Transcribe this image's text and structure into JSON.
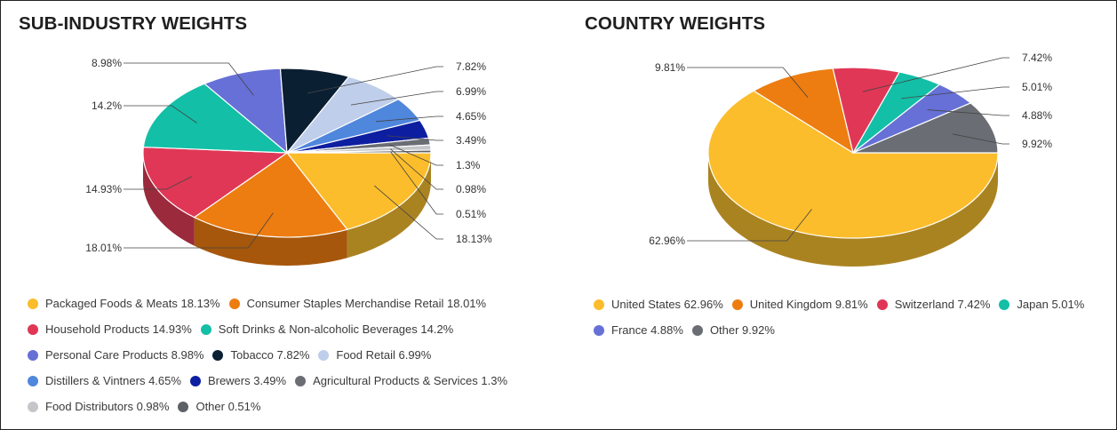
{
  "charts": [
    {
      "title": "SUB-INDUSTRY WEIGHTS",
      "chart_data": {
        "type": "pie",
        "title": "SUB-INDUSTRY WEIGHTS",
        "slices": [
          {
            "name": "Packaged Foods & Meats",
            "value": 18.13,
            "label": "18.13%",
            "color": "#FBBD2B",
            "side": "#AA8321"
          },
          {
            "name": "Consumer Staples Merchandise Retail",
            "value": 18.01,
            "label": "18.01%",
            "color": "#ED7D10",
            "side": "#A6570B"
          },
          {
            "name": "Household Products",
            "value": 14.93,
            "label": "14.93%",
            "color": "#E03757",
            "side": "#9A2A3C"
          },
          {
            "name": "Soft Drinks & Non-alcoholic Beverages",
            "value": 14.2,
            "label": "14.2%",
            "color": "#13BFA7",
            "side": "#0E8676"
          },
          {
            "name": "Personal Care Products",
            "value": 8.98,
            "label": "8.98%",
            "color": "#6670D6",
            "side": "#474F96"
          },
          {
            "name": "Tobacco",
            "value": 7.82,
            "label": "7.82%",
            "color": "#0B1F33",
            "side": "#071623"
          },
          {
            "name": "Food Retail",
            "value": 6.99,
            "label": "6.99%",
            "color": "#BFCEEA",
            "side": "#8690A4"
          },
          {
            "name": "Distillers & Vintners",
            "value": 4.65,
            "label": "4.65%",
            "color": "#4F87DC",
            "side": "#375E9A"
          },
          {
            "name": "Brewers",
            "value": 3.49,
            "label": "3.49%",
            "color": "#0D1FA0",
            "side": "#091670"
          },
          {
            "name": "Agricultural Products & Services",
            "value": 1.3,
            "label": "1.3%",
            "color": "#6A6E74",
            "side": "#4A4D51"
          },
          {
            "name": "Food Distributors",
            "value": 0.98,
            "label": "0.98%",
            "color": "#C4C6C9",
            "side": "#898B8D"
          },
          {
            "name": "Other",
            "value": 0.51,
            "label": "0.51%",
            "color": "#5D6165",
            "side": "#414447"
          }
        ],
        "legend": [
          [
            {
              "text": "Packaged Foods & Meats 18.13%",
              "color": "#FBBD2B"
            },
            {
              "text": "Consumer Staples Merchandise Retail 18.01%",
              "color": "#ED7D10"
            }
          ],
          [
            {
              "text": "Household Products 14.93%",
              "color": "#E03757"
            },
            {
              "text": "Soft Drinks & Non-alcoholic Beverages 14.2%",
              "color": "#13BFA7"
            }
          ],
          [
            {
              "text": "Personal Care Products 8.98%",
              "color": "#6670D6"
            },
            {
              "text": "Tobacco 7.82%",
              "color": "#0B1F33"
            },
            {
              "text": "Food Retail 6.99%",
              "color": "#BFCEEA"
            }
          ],
          [
            {
              "text": "Distillers & Vintners 4.65%",
              "color": "#4F87DC"
            },
            {
              "text": "Brewers 3.49%",
              "color": "#0D1FA0"
            },
            {
              "text": "Agricultural Products & Services 1.3%",
              "color": "#6A6E74"
            }
          ],
          [
            {
              "text": "Food Distributors 0.98%",
              "color": "#C4C6C9"
            },
            {
              "text": "Other 0.51%",
              "color": "#5D6165"
            }
          ]
        ],
        "legend_position": "bottom",
        "style": "3d"
      }
    },
    {
      "title": "COUNTRY WEIGHTS",
      "chart_data": {
        "type": "pie",
        "title": "COUNTRY WEIGHTS",
        "slices": [
          {
            "name": "United States",
            "value": 62.96,
            "label": "62.96%",
            "color": "#FBBD2B",
            "side": "#AA8321"
          },
          {
            "name": "United Kingdom",
            "value": 9.81,
            "label": "9.81%",
            "color": "#ED7D10",
            "side": "#A6570B"
          },
          {
            "name": "Switzerland",
            "value": 7.42,
            "label": "7.42%",
            "color": "#E03757",
            "side": "#9A2A3C"
          },
          {
            "name": "Japan",
            "value": 5.01,
            "label": "5.01%",
            "color": "#13BFA7",
            "side": "#0E8676"
          },
          {
            "name": "France",
            "value": 4.88,
            "label": "4.88%",
            "color": "#6670D6",
            "side": "#474F96"
          },
          {
            "name": "Other",
            "value": 9.92,
            "label": "9.92%",
            "color": "#6A6E74",
            "side": "#4A4D51"
          }
        ],
        "legend": [
          [
            {
              "text": "United States 62.96%",
              "color": "#FBBD2B"
            },
            {
              "text": "United Kingdom 9.81%",
              "color": "#ED7D10"
            },
            {
              "text": "Switzerland 7.42%",
              "color": "#E03757"
            },
            {
              "text": "Japan 5.01%",
              "color": "#13BFA7"
            }
          ],
          [
            {
              "text": "France 4.88%",
              "color": "#6670D6"
            },
            {
              "text": "Other 9.92%",
              "color": "#6A6E74"
            }
          ]
        ],
        "legend_position": "bottom",
        "style": "3d"
      }
    }
  ]
}
